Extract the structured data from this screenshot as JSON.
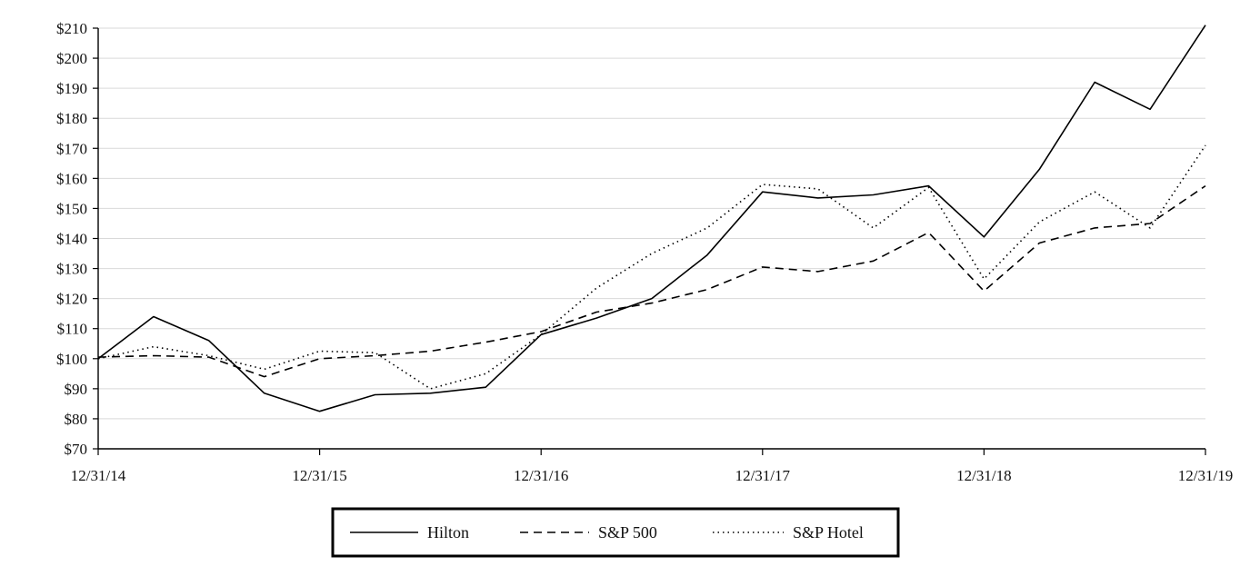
{
  "chart_data": {
    "type": "line",
    "title": "",
    "xlabel": "",
    "ylabel": "",
    "ylim": [
      70,
      210
    ],
    "y_ticks": [
      70,
      80,
      90,
      100,
      110,
      120,
      130,
      140,
      150,
      160,
      170,
      180,
      190,
      200,
      210
    ],
    "y_tick_labels": [
      "$70",
      "$80",
      "$90",
      "$100",
      "$110",
      "$120",
      "$130",
      "$140",
      "$150",
      "$160",
      "$170",
      "$180",
      "$190",
      "$200",
      "$210"
    ],
    "x_tick_labels": [
      "12/31/14",
      "12/31/15",
      "12/31/16",
      "12/31/17",
      "12/31/18",
      "12/31/19"
    ],
    "x_points_per_year": 4,
    "grid": true,
    "legend_position": "bottom-center",
    "series": [
      {
        "name": "Hilton",
        "dash": "solid",
        "values": [
          100,
          114,
          106,
          88.5,
          82.5,
          88,
          88.5,
          90.5,
          108,
          113.5,
          120,
          134.5,
          155.5,
          153.5,
          154.5,
          157.5,
          140.5,
          163,
          192,
          183,
          211
        ]
      },
      {
        "name": "S&P 500",
        "dash": "dashed",
        "values": [
          100.5,
          101,
          100.5,
          94,
          100,
          101,
          102.5,
          105.5,
          109,
          115.5,
          118.5,
          123,
          130.5,
          129,
          132.5,
          142,
          122.5,
          138.5,
          143.5,
          145,
          157.5
        ]
      },
      {
        "name": "S&P Hotel",
        "dash": "dotted",
        "values": [
          100,
          104,
          101,
          96.5,
          102.5,
          102,
          90,
          95,
          108,
          123.5,
          135,
          143.5,
          158,
          156.5,
          143.5,
          157,
          126.5,
          145.5,
          155.5,
          143.5,
          171
        ]
      }
    ]
  }
}
